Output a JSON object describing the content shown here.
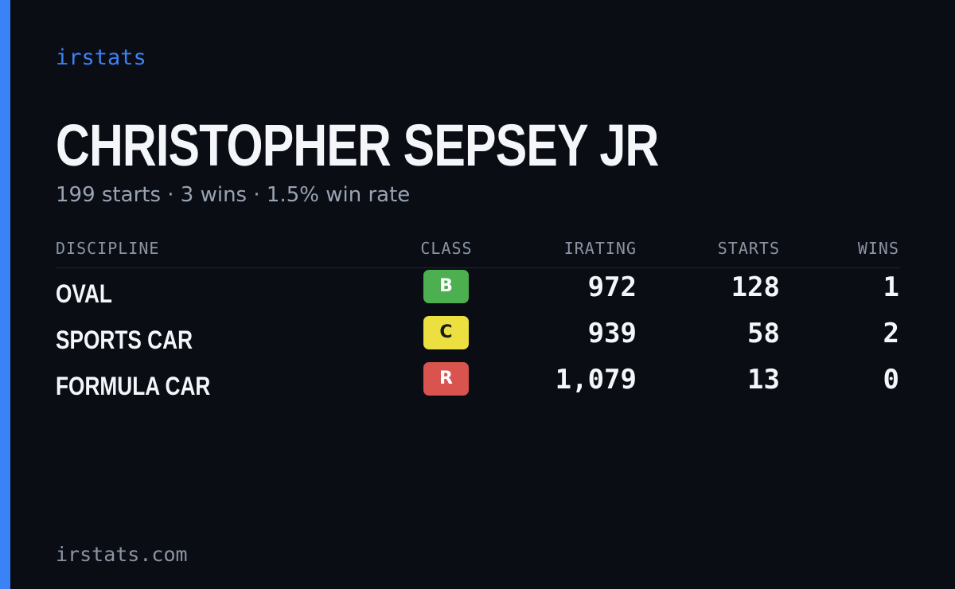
{
  "brand": "irstats",
  "driver": {
    "name": "CHRISTOPHER SEPSEY JR",
    "summary": "199 starts · 3 wins · 1.5% win rate"
  },
  "table": {
    "headers": {
      "discipline": "DISCIPLINE",
      "class": "CLASS",
      "irating": "IRATING",
      "starts": "STARTS",
      "wins": "WINS"
    },
    "rows": [
      {
        "discipline": "OVAL",
        "class": "B",
        "class_color": "#4caf50",
        "class_text_color": "#ffffff",
        "irating": "972",
        "starts": "128",
        "wins": "1"
      },
      {
        "discipline": "SPORTS CAR",
        "class": "C",
        "class_color": "#ebe040",
        "class_text_color": "#1a1a1a",
        "irating": "939",
        "starts": "58",
        "wins": "2"
      },
      {
        "discipline": "FORMULA CAR",
        "class": "R",
        "class_color": "#d9534f",
        "class_text_color": "#ffffff",
        "irating": "1,079",
        "starts": "13",
        "wins": "0"
      }
    ]
  },
  "footer": "irstats.com",
  "colors": {
    "accent": "#3b82f6",
    "background": "#0a0d14"
  }
}
